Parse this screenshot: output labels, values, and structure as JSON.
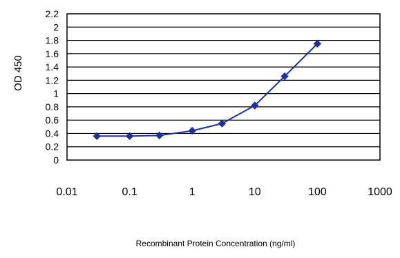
{
  "chart_data": {
    "type": "line",
    "xlabel": "Recombinant Protein Concentration (ng/ml)",
    "ylabel": "OD 450",
    "xscale": "log",
    "xlim": [
      0.01,
      1000
    ],
    "ylim": [
      0,
      2.2
    ],
    "grid": "horizontal",
    "x_ticks": [
      {
        "value": 0.01,
        "label": "0.01"
      },
      {
        "value": 0.1,
        "label": "0.1"
      },
      {
        "value": 1,
        "label": "1"
      },
      {
        "value": 10,
        "label": "10"
      },
      {
        "value": 100,
        "label": "100"
      },
      {
        "value": 1000,
        "label": "1000"
      }
    ],
    "y_ticks": [
      {
        "value": 0,
        "label": "0"
      },
      {
        "value": 0.2,
        "label": "0.2"
      },
      {
        "value": 0.4,
        "label": "0.4"
      },
      {
        "value": 0.6,
        "label": "0.6"
      },
      {
        "value": 0.8,
        "label": "0.8"
      },
      {
        "value": 1,
        "label": "1"
      },
      {
        "value": 1.2,
        "label": "1.2"
      },
      {
        "value": 1.4,
        "label": "1.4"
      },
      {
        "value": 1.6,
        "label": "1.6"
      },
      {
        "value": 1.8,
        "label": "1.8"
      },
      {
        "value": 2,
        "label": "2"
      },
      {
        "value": 2.2,
        "label": "2.2"
      }
    ],
    "series": [
      {
        "color": "#1f2f9f",
        "marker": "diamond",
        "x": [
          0.03,
          0.1,
          0.3,
          1,
          3,
          10,
          30,
          100
        ],
        "y": [
          0.36,
          0.36,
          0.37,
          0.44,
          0.55,
          0.82,
          1.26,
          1.75
        ]
      }
    ],
    "colors": {
      "plot_border": "#000000",
      "gridline": "#000000",
      "series_line": "#1f2f9f"
    }
  }
}
